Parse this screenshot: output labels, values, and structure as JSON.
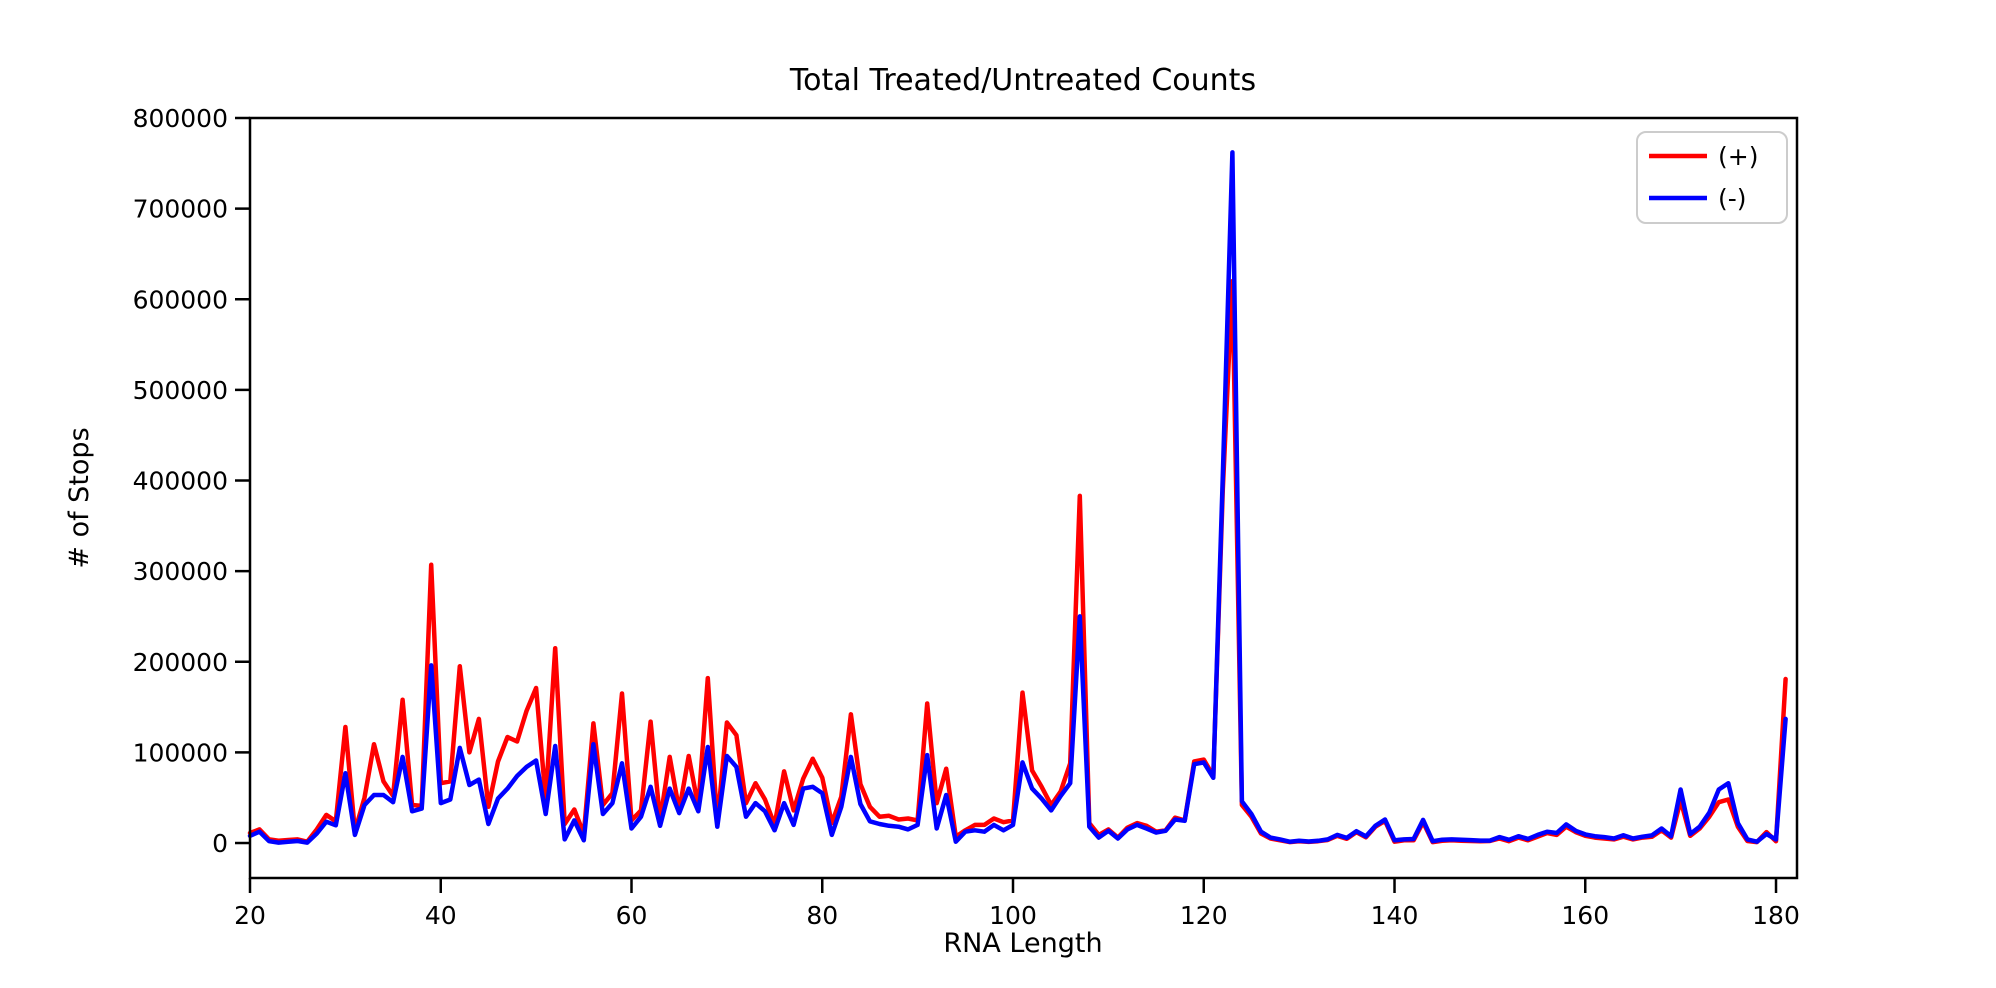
{
  "chart_data": {
    "type": "line",
    "title": "Total Treated/Untreated Counts",
    "xlabel": "RNA Length",
    "ylabel": "# of Stops",
    "grid": false,
    "legend_position": "upper right",
    "xlim": [
      20,
      182.2
    ],
    "ylim": [
      -38600,
      800000
    ],
    "xticks": [
      20,
      40,
      60,
      80,
      100,
      120,
      140,
      160,
      180
    ],
    "xtick_labels": [
      "20",
      "40",
      "60",
      "80",
      "100",
      "120",
      "140",
      "160",
      "180"
    ],
    "yticks": [
      0,
      100000,
      200000,
      300000,
      400000,
      500000,
      600000,
      700000,
      800000
    ],
    "ytick_labels": [
      "0",
      "100000",
      "200000",
      "300000",
      "400000",
      "500000",
      "600000",
      "700000",
      "800000"
    ],
    "x": [
      20,
      21,
      22,
      23,
      24,
      25,
      26,
      27,
      28,
      29,
      30,
      31,
      32,
      33,
      34,
      35,
      36,
      37,
      38,
      39,
      40,
      41,
      42,
      43,
      44,
      45,
      46,
      47,
      48,
      49,
      50,
      51,
      52,
      53,
      54,
      55,
      56,
      57,
      58,
      59,
      60,
      61,
      62,
      63,
      64,
      65,
      66,
      67,
      68,
      69,
      70,
      71,
      72,
      73,
      74,
      75,
      76,
      77,
      78,
      79,
      80,
      81,
      82,
      83,
      84,
      85,
      86,
      87,
      88,
      89,
      90,
      91,
      92,
      93,
      94,
      95,
      96,
      97,
      98,
      99,
      100,
      101,
      102,
      103,
      104,
      105,
      106,
      107,
      108,
      109,
      110,
      111,
      112,
      113,
      114,
      115,
      116,
      117,
      118,
      119,
      120,
      121,
      122,
      123,
      124,
      125,
      126,
      127,
      128,
      129,
      130,
      131,
      132,
      133,
      134,
      135,
      136,
      137,
      138,
      139,
      140,
      141,
      142,
      143,
      144,
      145,
      146,
      147,
      148,
      149,
      150,
      151,
      152,
      153,
      154,
      155,
      156,
      157,
      158,
      159,
      160,
      161,
      162,
      163,
      164,
      165,
      166,
      167,
      168,
      169,
      170,
      171,
      172,
      173,
      174,
      175,
      176,
      177,
      178,
      179,
      180,
      181
    ],
    "series": [
      {
        "name": "(+)",
        "color": "#ff0000",
        "values": [
          11000,
          15000,
          4000,
          2600,
          3300,
          4000,
          1500,
          15000,
          31000,
          24000,
          128000,
          13000,
          50000,
          109000,
          68000,
          52000,
          158000,
          42000,
          41000,
          307000,
          66000,
          68000,
          195000,
          100000,
          137000,
          40000,
          90000,
          117000,
          112000,
          146000,
          171000,
          48000,
          215000,
          21000,
          37000,
          10000,
          132000,
          42000,
          55000,
          165000,
          25000,
          36000,
          134000,
          25000,
          95000,
          36000,
          96000,
          40000,
          182000,
          22000,
          133000,
          119000,
          44000,
          66000,
          48000,
          20000,
          79000,
          36000,
          71000,
          93000,
          72000,
          22000,
          51000,
          142000,
          65000,
          40000,
          29000,
          30000,
          26000,
          27000,
          25000,
          154000,
          44000,
          82000,
          7000,
          14000,
          20000,
          20000,
          27000,
          23000,
          25000,
          166000,
          80000,
          62000,
          42000,
          57000,
          88000,
          383000,
          22000,
          9000,
          15000,
          6000,
          17000,
          22000,
          19000,
          12500,
          14000,
          28000,
          25000,
          90000,
          92000,
          74000,
          390000,
          620000,
          42000,
          29000,
          10500,
          5000,
          3000,
          1000,
          2000,
          1200,
          2000,
          3300,
          8000,
          4600,
          12000,
          6300,
          18000,
          24500,
          1500,
          3000,
          3000,
          23000,
          1000,
          2500,
          3000,
          2500,
          2200,
          2000,
          2200,
          5000,
          2000,
          6000,
          3000,
          7000,
          11000,
          9000,
          18000,
          12000,
          8000,
          6000,
          5000,
          4000,
          7000,
          4000,
          6000,
          7000,
          14000,
          6000,
          47000,
          8000,
          16000,
          29000,
          45000,
          48000,
          18000,
          2200,
          1000,
          12000,
          2000,
          181000
        ]
      },
      {
        "name": "(-)",
        "color": "#0000ff",
        "values": [
          8000,
          12500,
          2000,
          500,
          1500,
          2200,
          500,
          10500,
          23500,
          19500,
          77000,
          9000,
          42000,
          53000,
          53000,
          45000,
          95000,
          35000,
          38000,
          196000,
          44000,
          48000,
          105000,
          64000,
          70000,
          21000,
          49000,
          60000,
          74000,
          84000,
          91000,
          32000,
          107000,
          4000,
          25000,
          3000,
          109000,
          32000,
          44000,
          88000,
          16000,
          29000,
          62000,
          19000,
          60000,
          33000,
          60000,
          35000,
          106000,
          18000,
          96000,
          84000,
          29000,
          44000,
          35000,
          14000,
          44000,
          20000,
          60000,
          62000,
          55000,
          9000,
          40000,
          95000,
          43000,
          24000,
          21000,
          19000,
          18000,
          15000,
          20000,
          97000,
          16000,
          53000,
          1500,
          12500,
          14000,
          12500,
          20000,
          14000,
          20000,
          89000,
          60000,
          49000,
          36000,
          52000,
          66000,
          250000,
          18000,
          6000,
          13500,
          5000,
          15000,
          20000,
          16000,
          11500,
          13500,
          26000,
          24500,
          87000,
          89000,
          72000,
          405000,
          762000,
          46000,
          32000,
          12500,
          6000,
          4000,
          1500,
          2500,
          1700,
          2500,
          4000,
          9000,
          5600,
          13000,
          7300,
          19000,
          26000,
          3000,
          4000,
          4400,
          25500,
          2000,
          3700,
          4000,
          3500,
          3200,
          2700,
          2700,
          6500,
          3500,
          7500,
          4500,
          9000,
          12500,
          11000,
          20500,
          13500,
          9500,
          7500,
          6500,
          5000,
          8500,
          5000,
          7000,
          8500,
          16000,
          7500,
          59000,
          10000,
          18000,
          33500,
          59000,
          66000,
          22000,
          4000,
          1500,
          10000,
          4000,
          137000
        ]
      }
    ]
  }
}
